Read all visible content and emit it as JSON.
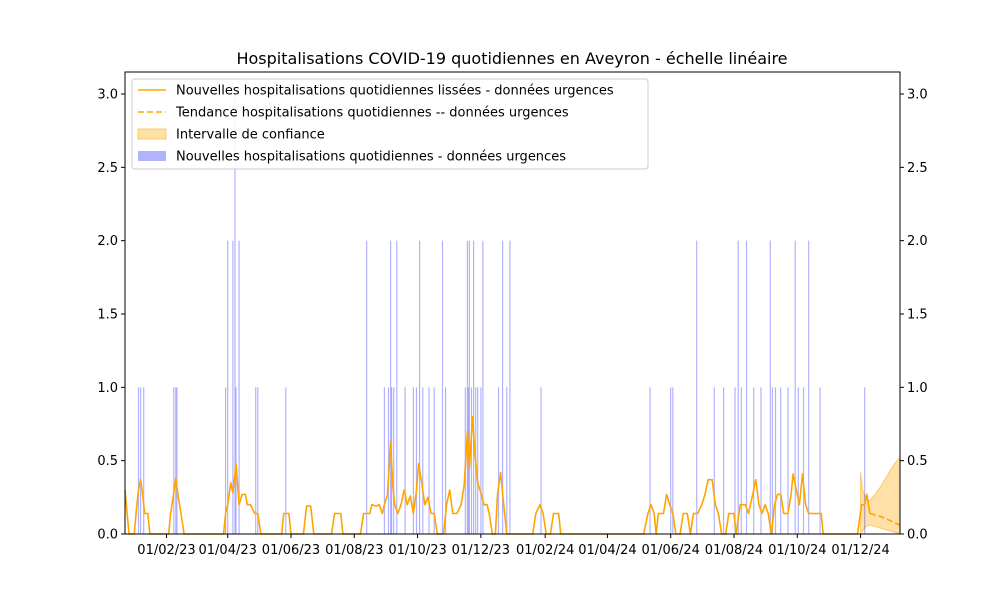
{
  "chart_data": {
    "type": "bar+line",
    "title": "Hospitalisations COVID-19 quotidiennes en Aveyron - échelle linéaire",
    "xlabel": "",
    "ylabel": "",
    "ylim": [
      0,
      3.15
    ],
    "y_ticks": [
      "0.0",
      "0.5",
      "1.0",
      "1.5",
      "2.0",
      "2.5",
      "3.0"
    ],
    "x_domain": [
      "2022-12-23",
      "2025-01-08"
    ],
    "x_ticks": [
      {
        "date": "2023-02-01",
        "label": "01/02/23"
      },
      {
        "date": "2023-04-01",
        "label": "01/04/23"
      },
      {
        "date": "2023-06-01",
        "label": "01/06/23"
      },
      {
        "date": "2023-08-01",
        "label": "01/08/23"
      },
      {
        "date": "2023-10-01",
        "label": "01/10/23"
      },
      {
        "date": "2023-12-01",
        "label": "01/12/23"
      },
      {
        "date": "2024-02-01",
        "label": "01/02/24"
      },
      {
        "date": "2024-04-01",
        "label": "01/04/24"
      },
      {
        "date": "2024-06-01",
        "label": "01/06/24"
      },
      {
        "date": "2024-08-01",
        "label": "01/08/24"
      },
      {
        "date": "2024-10-01",
        "label": "01/10/24"
      },
      {
        "date": "2024-12-01",
        "label": "01/12/24"
      }
    ],
    "legend_position": "top-left",
    "legend": [
      {
        "label": "Nouvelles hospitalisations quotidiennes lissées - données urgences",
        "kind": "line",
        "color": "#ffa500"
      },
      {
        "label": "Tendance hospitalisations quotidiennes -- données urgences",
        "kind": "dashed",
        "color": "#ffa500"
      },
      {
        "label": "Intervalle de confiance",
        "kind": "area",
        "color": "#ffa500"
      },
      {
        "label": "Nouvelles hospitalisations quotidiennes - données urgences",
        "kind": "bar",
        "color": "#0000ff"
      }
    ],
    "series": [
      {
        "name": "Nouvelles hospitalisations quotidiennes - données urgences",
        "type": "bar",
        "color": "#0000ff",
        "points": [
          [
            "2023-01-05",
            1
          ],
          [
            "2023-01-07",
            1
          ],
          [
            "2023-01-10",
            1
          ],
          [
            "2023-02-08",
            1
          ],
          [
            "2023-02-10",
            1
          ],
          [
            "2023-02-11",
            1
          ],
          [
            "2023-03-30",
            1
          ],
          [
            "2023-04-01",
            2
          ],
          [
            "2023-04-06",
            2
          ],
          [
            "2023-04-08",
            3
          ],
          [
            "2023-04-09",
            1
          ],
          [
            "2023-04-12",
            2
          ],
          [
            "2023-04-28",
            1
          ],
          [
            "2023-04-30",
            1
          ],
          [
            "2023-05-27",
            1
          ],
          [
            "2023-08-13",
            2
          ],
          [
            "2023-08-30",
            1
          ],
          [
            "2023-09-03",
            1
          ],
          [
            "2023-09-05",
            2
          ],
          [
            "2023-09-06",
            1
          ],
          [
            "2023-09-08",
            1
          ],
          [
            "2023-09-11",
            2
          ],
          [
            "2023-09-19",
            1
          ],
          [
            "2023-09-27",
            1
          ],
          [
            "2023-09-30",
            1
          ],
          [
            "2023-10-03",
            2
          ],
          [
            "2023-10-06",
            1
          ],
          [
            "2023-10-12",
            1
          ],
          [
            "2023-10-17",
            1
          ],
          [
            "2023-10-25",
            2
          ],
          [
            "2023-10-28",
            1
          ],
          [
            "2023-11-16",
            1
          ],
          [
            "2023-11-18",
            2
          ],
          [
            "2023-11-19",
            1
          ],
          [
            "2023-11-20",
            2
          ],
          [
            "2023-11-22",
            1
          ],
          [
            "2023-11-24",
            2
          ],
          [
            "2023-11-26",
            1
          ],
          [
            "2023-11-28",
            1
          ],
          [
            "2023-12-01",
            1
          ],
          [
            "2023-12-03",
            2
          ],
          [
            "2023-12-18",
            1
          ],
          [
            "2023-12-22",
            2
          ],
          [
            "2023-12-26",
            1
          ],
          [
            "2023-12-29",
            2
          ],
          [
            "2024-01-28",
            1
          ],
          [
            "2024-05-12",
            1
          ],
          [
            "2024-06-01",
            1
          ],
          [
            "2024-06-03",
            1
          ],
          [
            "2024-06-26",
            2
          ],
          [
            "2024-07-13",
            1
          ],
          [
            "2024-07-22",
            1
          ],
          [
            "2024-08-02",
            1
          ],
          [
            "2024-08-05",
            2
          ],
          [
            "2024-08-08",
            1
          ],
          [
            "2024-08-13",
            2
          ],
          [
            "2024-08-20",
            1
          ],
          [
            "2024-08-27",
            1
          ],
          [
            "2024-09-05",
            2
          ],
          [
            "2024-09-07",
            1
          ],
          [
            "2024-09-10",
            1
          ],
          [
            "2024-09-15",
            1
          ],
          [
            "2024-09-22",
            1
          ],
          [
            "2024-09-29",
            2
          ],
          [
            "2024-10-02",
            1
          ],
          [
            "2024-10-07",
            1
          ],
          [
            "2024-10-12",
            2
          ],
          [
            "2024-10-23",
            1
          ],
          [
            "2024-12-05",
            1
          ]
        ]
      },
      {
        "name": "Nouvelles hospitalisations quotidiennes lissées - données urgences",
        "type": "line",
        "color": "#ffa500",
        "points": [
          [
            "2022-12-23",
            0.3
          ],
          [
            "2022-12-25",
            0.14
          ],
          [
            "2022-12-27",
            0.0
          ],
          [
            "2023-01-01",
            0.0
          ],
          [
            "2023-01-03",
            0.17
          ],
          [
            "2023-01-05",
            0.3
          ],
          [
            "2023-01-07",
            0.37
          ],
          [
            "2023-01-09",
            0.27
          ],
          [
            "2023-01-11",
            0.14
          ],
          [
            "2023-01-14",
            0.14
          ],
          [
            "2023-01-16",
            0.0
          ],
          [
            "2023-02-03",
            0.0
          ],
          [
            "2023-02-05",
            0.14
          ],
          [
            "2023-02-08",
            0.28
          ],
          [
            "2023-02-10",
            0.38
          ],
          [
            "2023-02-12",
            0.27
          ],
          [
            "2023-02-15",
            0.14
          ],
          [
            "2023-02-18",
            0.0
          ],
          [
            "2023-03-28",
            0.0
          ],
          [
            "2023-03-30",
            0.14
          ],
          [
            "2023-04-01",
            0.2
          ],
          [
            "2023-04-04",
            0.35
          ],
          [
            "2023-04-06",
            0.28
          ],
          [
            "2023-04-09",
            0.48
          ],
          [
            "2023-04-12",
            0.2
          ],
          [
            "2023-04-15",
            0.27
          ],
          [
            "2023-04-18",
            0.27
          ],
          [
            "2023-04-20",
            0.2
          ],
          [
            "2023-04-23",
            0.2
          ],
          [
            "2023-04-27",
            0.14
          ],
          [
            "2023-04-30",
            0.14
          ],
          [
            "2023-05-03",
            0.0
          ],
          [
            "2023-05-23",
            0.0
          ],
          [
            "2023-05-25",
            0.14
          ],
          [
            "2023-05-30",
            0.14
          ],
          [
            "2023-06-01",
            0.0
          ],
          [
            "2023-06-13",
            0.0
          ],
          [
            "2023-06-16",
            0.19
          ],
          [
            "2023-06-20",
            0.19
          ],
          [
            "2023-06-23",
            0.0
          ],
          [
            "2023-07-10",
            0.0
          ],
          [
            "2023-07-13",
            0.14
          ],
          [
            "2023-07-19",
            0.14
          ],
          [
            "2023-07-21",
            0.0
          ],
          [
            "2023-08-07",
            0.0
          ],
          [
            "2023-08-10",
            0.14
          ],
          [
            "2023-08-16",
            0.14
          ],
          [
            "2023-08-18",
            0.2
          ],
          [
            "2023-08-22",
            0.19
          ],
          [
            "2023-08-25",
            0.2
          ],
          [
            "2023-08-28",
            0.14
          ],
          [
            "2023-08-30",
            0.2
          ],
          [
            "2023-09-02",
            0.27
          ],
          [
            "2023-09-05",
            0.63
          ],
          [
            "2023-09-07",
            0.34
          ],
          [
            "2023-09-09",
            0.2
          ],
          [
            "2023-09-12",
            0.14
          ],
          [
            "2023-09-15",
            0.2
          ],
          [
            "2023-09-18",
            0.3
          ],
          [
            "2023-09-21",
            0.2
          ],
          [
            "2023-09-24",
            0.26
          ],
          [
            "2023-09-27",
            0.14
          ],
          [
            "2023-09-30",
            0.3
          ],
          [
            "2023-10-02",
            0.48
          ],
          [
            "2023-10-05",
            0.35
          ],
          [
            "2023-10-08",
            0.2
          ],
          [
            "2023-10-11",
            0.25
          ],
          [
            "2023-10-14",
            0.14
          ],
          [
            "2023-10-17",
            0.14
          ],
          [
            "2023-10-20",
            0.0
          ],
          [
            "2023-10-26",
            0.0
          ],
          [
            "2023-10-29",
            0.2
          ],
          [
            "2023-11-01",
            0.3
          ],
          [
            "2023-11-04",
            0.14
          ],
          [
            "2023-11-08",
            0.14
          ],
          [
            "2023-11-12",
            0.2
          ],
          [
            "2023-11-15",
            0.34
          ],
          [
            "2023-11-18",
            0.7
          ],
          [
            "2023-11-20",
            0.45
          ],
          [
            "2023-11-23",
            0.8
          ],
          [
            "2023-11-25",
            0.57
          ],
          [
            "2023-11-28",
            0.35
          ],
          [
            "2023-12-01",
            0.28
          ],
          [
            "2023-12-04",
            0.2
          ],
          [
            "2023-12-07",
            0.2
          ],
          [
            "2023-12-09",
            0.14
          ],
          [
            "2023-12-12",
            0.0
          ],
          [
            "2023-12-15",
            0.0
          ],
          [
            "2023-12-17",
            0.27
          ],
          [
            "2023-12-20",
            0.42
          ],
          [
            "2023-12-23",
            0.2
          ],
          [
            "2023-12-26",
            0.0
          ],
          [
            "2024-01-20",
            0.0
          ],
          [
            "2024-01-23",
            0.14
          ],
          [
            "2024-01-27",
            0.2
          ],
          [
            "2024-01-30",
            0.14
          ],
          [
            "2024-02-02",
            0.0
          ],
          [
            "2024-02-06",
            0.0
          ],
          [
            "2024-02-09",
            0.14
          ],
          [
            "2024-02-14",
            0.14
          ],
          [
            "2024-02-16",
            0.0
          ],
          [
            "2024-05-06",
            0.0
          ],
          [
            "2024-05-10",
            0.14
          ],
          [
            "2024-05-13",
            0.2
          ],
          [
            "2024-05-16",
            0.14
          ],
          [
            "2024-05-18",
            0.0
          ],
          [
            "2024-05-20",
            0.14
          ],
          [
            "2024-05-25",
            0.14
          ],
          [
            "2024-05-28",
            0.27
          ],
          [
            "2024-05-31",
            0.2
          ],
          [
            "2024-06-03",
            0.14
          ],
          [
            "2024-06-06",
            0.0
          ],
          [
            "2024-06-10",
            0.0
          ],
          [
            "2024-06-13",
            0.14
          ],
          [
            "2024-06-17",
            0.14
          ],
          [
            "2024-06-20",
            0.0
          ],
          [
            "2024-06-23",
            0.14
          ],
          [
            "2024-06-27",
            0.14
          ],
          [
            "2024-07-01",
            0.2
          ],
          [
            "2024-07-04",
            0.27
          ],
          [
            "2024-07-07",
            0.37
          ],
          [
            "2024-07-11",
            0.37
          ],
          [
            "2024-07-14",
            0.2
          ],
          [
            "2024-07-17",
            0.14
          ],
          [
            "2024-07-20",
            0.0
          ],
          [
            "2024-07-24",
            0.0
          ],
          [
            "2024-07-27",
            0.14
          ],
          [
            "2024-08-01",
            0.14
          ],
          [
            "2024-08-03",
            0.0
          ],
          [
            "2024-08-07",
            0.2
          ],
          [
            "2024-08-12",
            0.2
          ],
          [
            "2024-08-15",
            0.14
          ],
          [
            "2024-08-19",
            0.27
          ],
          [
            "2024-08-22",
            0.37
          ],
          [
            "2024-08-25",
            0.2
          ],
          [
            "2024-08-28",
            0.14
          ],
          [
            "2024-08-31",
            0.2
          ],
          [
            "2024-09-03",
            0.14
          ],
          [
            "2024-09-06",
            0.0
          ],
          [
            "2024-09-09",
            0.2
          ],
          [
            "2024-09-12",
            0.27
          ],
          [
            "2024-09-15",
            0.27
          ],
          [
            "2024-09-18",
            0.14
          ],
          [
            "2024-09-22",
            0.14
          ],
          [
            "2024-09-25",
            0.27
          ],
          [
            "2024-09-27",
            0.41
          ],
          [
            "2024-09-30",
            0.3
          ],
          [
            "2024-10-03",
            0.2
          ],
          [
            "2024-10-06",
            0.41
          ],
          [
            "2024-10-09",
            0.2
          ],
          [
            "2024-10-12",
            0.14
          ],
          [
            "2024-10-24",
            0.14
          ],
          [
            "2024-10-26",
            0.0
          ],
          [
            "2024-11-28",
            0.0
          ],
          [
            "2024-12-02",
            0.2
          ],
          [
            "2024-12-05",
            0.2
          ],
          [
            "2024-12-07",
            0.27
          ],
          [
            "2024-12-10",
            0.14
          ]
        ]
      },
      {
        "name": "Tendance hospitalisations quotidiennes -- données urgences",
        "type": "dashed",
        "color": "#ffa500",
        "points": [
          [
            "2024-12-10",
            0.14
          ],
          [
            "2024-12-20",
            0.12
          ],
          [
            "2024-12-30",
            0.09
          ],
          [
            "2025-01-08",
            0.06
          ]
        ]
      },
      {
        "name": "Intervalle de confiance",
        "type": "band",
        "color": "#ffa500",
        "points": [
          [
            "2024-12-01",
            0.0,
            0.42
          ],
          [
            "2024-12-03",
            0.02,
            0.3
          ],
          [
            "2024-12-06",
            0.05,
            0.24
          ],
          [
            "2024-12-10",
            0.06,
            0.23
          ],
          [
            "2024-12-15",
            0.05,
            0.27
          ],
          [
            "2024-12-20",
            0.04,
            0.32
          ],
          [
            "2024-12-25",
            0.03,
            0.38
          ],
          [
            "2024-12-30",
            0.02,
            0.44
          ],
          [
            "2025-01-04",
            0.01,
            0.49
          ],
          [
            "2025-01-08",
            0.0,
            0.52
          ]
        ]
      }
    ]
  }
}
